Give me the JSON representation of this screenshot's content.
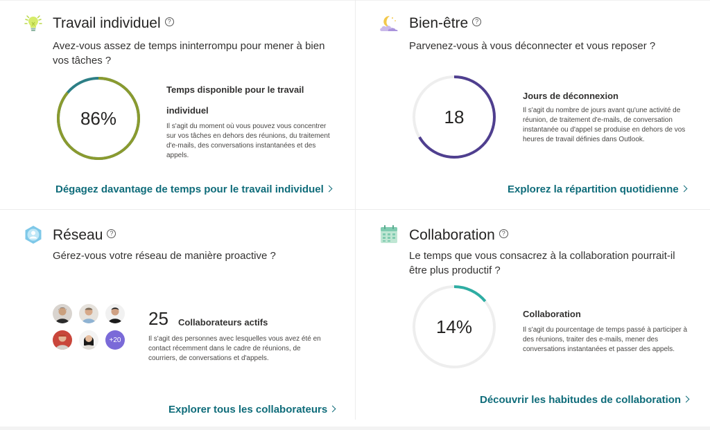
{
  "cards": {
    "individual": {
      "title": "Travail individuel",
      "help": "?",
      "question": "Avez-vous assez de temps ininterrompu pour mener à bien vos tâches ?",
      "value_text": "86%",
      "value_fraction": 0.86,
      "metric_title": "Temps disponible pour le travail individuel",
      "metric_desc": "Il s'agit du moment où vous pouvez vous concentrer sur vos tâches en dehors des réunions, du traitement d'e-mails, des conversations instantanées et des appels.",
      "link": "Dégagez davantage de temps pour le travail individuel",
      "ring_color": "#8a9a2f",
      "ring_remainder_color": "#2d7f86"
    },
    "wellbeing": {
      "title": "Bien-être",
      "help": "?",
      "question": "Parvenez-vous à vous déconnecter et vous reposer ?",
      "value_text": "18",
      "metric_title": "Jours de déconnexion",
      "metric_desc": "Il s'agit du nombre de jours avant qu'une activité de réunion, de traitement d'e-mails, de conversation instantanée ou d'appel se produise en dehors de vos heures de travail définies dans Outlook.",
      "link": "Explorez la répartition quotidienne",
      "ring_color": "#4f3f8f"
    },
    "network": {
      "title": "Réseau",
      "help": "?",
      "question": "Gérez-vous votre réseau de manière proactive ?",
      "count": "25",
      "count_label": "Collaborateurs actifs",
      "metric_desc": "Il s'agit des personnes avec lesquelles vous avez été en contact récemment dans le cadre de réunions, de courriers, de conversations et d'appels.",
      "more_badge": "+20",
      "link": "Explorer tous les collaborateurs"
    },
    "collaboration": {
      "title": "Collaboration",
      "help": "?",
      "question": "Le temps que vous consacrez à la collaboration pourrait-il être plus productif ?",
      "value_text": "14%",
      "value_fraction": 0.14,
      "metric_title": "Collaboration",
      "metric_desc": "Il s'agit du pourcentage de temps passé à participer à des réunions, traiter des e-mails, mener des conversations instantanées et passer des appels.",
      "link": "Découvrir les habitudes de collaboration",
      "ring_color": "#2eada3"
    }
  },
  "icons": {
    "individual": "lightbulb-icon",
    "wellbeing": "moon-cloud-icon",
    "network": "globe-person-icon",
    "collaboration": "calendar-icon",
    "help": "question-circle-icon",
    "chevron": "chevron-right-icon"
  },
  "colors": {
    "link": "#0f6c7a",
    "accent_purple": "#7a6ad8"
  }
}
